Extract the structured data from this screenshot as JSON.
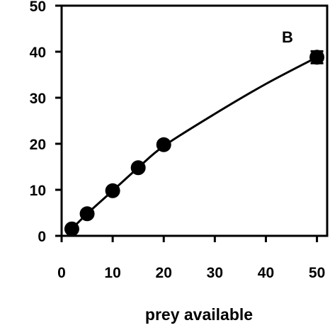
{
  "chart_data": {
    "type": "scatter",
    "title": "",
    "panel_label": "B",
    "xlabel": "prey available",
    "ylabel": "",
    "xlim": [
      0,
      52
    ],
    "ylim": [
      0,
      50
    ],
    "xtick_labels": [
      "0",
      "10",
      "20",
      "30",
      "40",
      "50"
    ],
    "ytick_labels": [
      "0",
      "10",
      "20",
      "30",
      "40",
      "50"
    ],
    "grid": false,
    "legend": "none",
    "series": [
      {
        "x": [
          2,
          5,
          10,
          15,
          20,
          50
        ],
        "y": [
          1.5,
          4.8,
          9.8,
          14.8,
          19.8,
          38.8
        ],
        "yerr": [
          0,
          0,
          0,
          0,
          0,
          1.3
        ]
      }
    ],
    "fit_curve": {
      "x": [
        2,
        5,
        10,
        15,
        20,
        30,
        40,
        50
      ],
      "y": [
        1.5,
        4.8,
        9.8,
        14.8,
        19.5,
        26.5,
        33.0,
        38.8
      ]
    },
    "colors": {
      "marker": "#000000",
      "axis": "#000000"
    }
  }
}
